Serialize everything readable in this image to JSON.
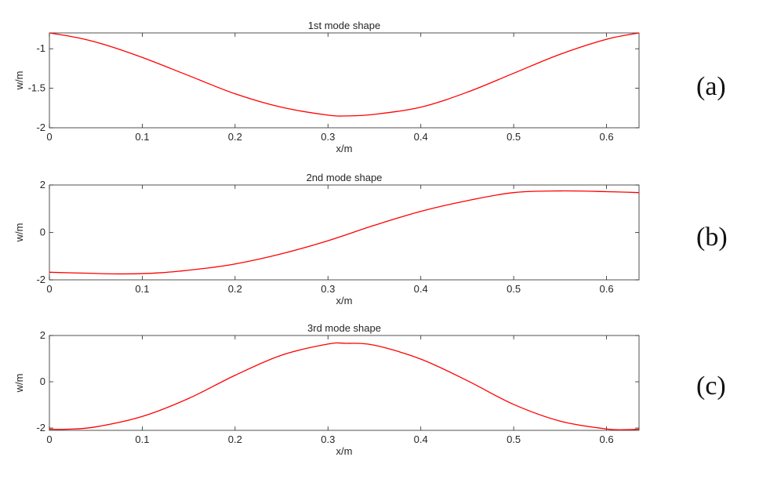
{
  "chart_data": [
    {
      "type": "line",
      "panel_label": "(a)",
      "title": "1st mode shape",
      "xlabel": "x/m",
      "ylabel": "w/m",
      "xlim": [
        0,
        0.635
      ],
      "ylim": [
        -2,
        -0.8
      ],
      "xticks": [
        0,
        0.1,
        0.2,
        0.3,
        0.4,
        0.5,
        0.6
      ],
      "xtick_labels": [
        "0",
        "0.1",
        "0.2",
        "0.3",
        "0.4",
        "0.5",
        "0.6"
      ],
      "yticks": [
        -2,
        -1.5,
        -1
      ],
      "ytick_labels": [
        "-2",
        "-1.5",
        "-1"
      ],
      "grid": false,
      "color": "#ff0000",
      "x": [
        0,
        0.03,
        0.06,
        0.1,
        0.15,
        0.2,
        0.25,
        0.3,
        0.32,
        0.35,
        0.4,
        0.45,
        0.5,
        0.55,
        0.6,
        0.635
      ],
      "y": [
        -0.8,
        -0.86,
        -0.95,
        -1.11,
        -1.34,
        -1.57,
        -1.74,
        -1.84,
        -1.85,
        -1.83,
        -1.74,
        -1.55,
        -1.31,
        -1.07,
        -0.88,
        -0.8
      ]
    },
    {
      "type": "line",
      "panel_label": "(b)",
      "title": "2nd mode shape",
      "xlabel": "x/m",
      "ylabel": "w/m",
      "xlim": [
        0,
        0.635
      ],
      "ylim": [
        -2,
        2
      ],
      "xticks": [
        0,
        0.1,
        0.2,
        0.3,
        0.4,
        0.5,
        0.6
      ],
      "xtick_labels": [
        "0",
        "0.1",
        "0.2",
        "0.3",
        "0.4",
        "0.5",
        "0.6"
      ],
      "yticks": [
        -2,
        0,
        2
      ],
      "ytick_labels": [
        "-2",
        "0",
        "2"
      ],
      "grid": false,
      "color": "#ff0000",
      "x": [
        0,
        0.04,
        0.08,
        0.12,
        0.16,
        0.2,
        0.25,
        0.3,
        0.35,
        0.4,
        0.45,
        0.5,
        0.55,
        0.6,
        0.635
      ],
      "y": [
        -1.68,
        -1.72,
        -1.75,
        -1.7,
        -1.55,
        -1.33,
        -0.9,
        -0.35,
        0.3,
        0.89,
        1.34,
        1.68,
        1.75,
        1.72,
        1.68
      ]
    },
    {
      "type": "line",
      "panel_label": "(c)",
      "title": "3rd mode shape",
      "xlabel": "x/m",
      "ylabel": "w/m",
      "xlim": [
        0,
        0.635
      ],
      "ylim": [
        -2.1,
        2
      ],
      "xticks": [
        0,
        0.1,
        0.2,
        0.3,
        0.4,
        0.5,
        0.6
      ],
      "xtick_labels": [
        "0",
        "0.1",
        "0.2",
        "0.3",
        "0.4",
        "0.5",
        "0.6"
      ],
      "yticks": [
        -2,
        0,
        2
      ],
      "ytick_labels": [
        "-2",
        "0",
        "2"
      ],
      "grid": false,
      "color": "#ff0000",
      "x": [
        0,
        0.02,
        0.05,
        0.1,
        0.15,
        0.2,
        0.25,
        0.3,
        0.32,
        0.35,
        0.4,
        0.45,
        0.5,
        0.55,
        0.6,
        0.62,
        0.635
      ],
      "y": [
        -2.05,
        -2.05,
        -1.95,
        -1.5,
        -0.72,
        0.28,
        1.15,
        1.63,
        1.66,
        1.58,
        0.98,
        0.05,
        -0.98,
        -1.7,
        -2.04,
        -2.07,
        -2.05
      ]
    }
  ]
}
